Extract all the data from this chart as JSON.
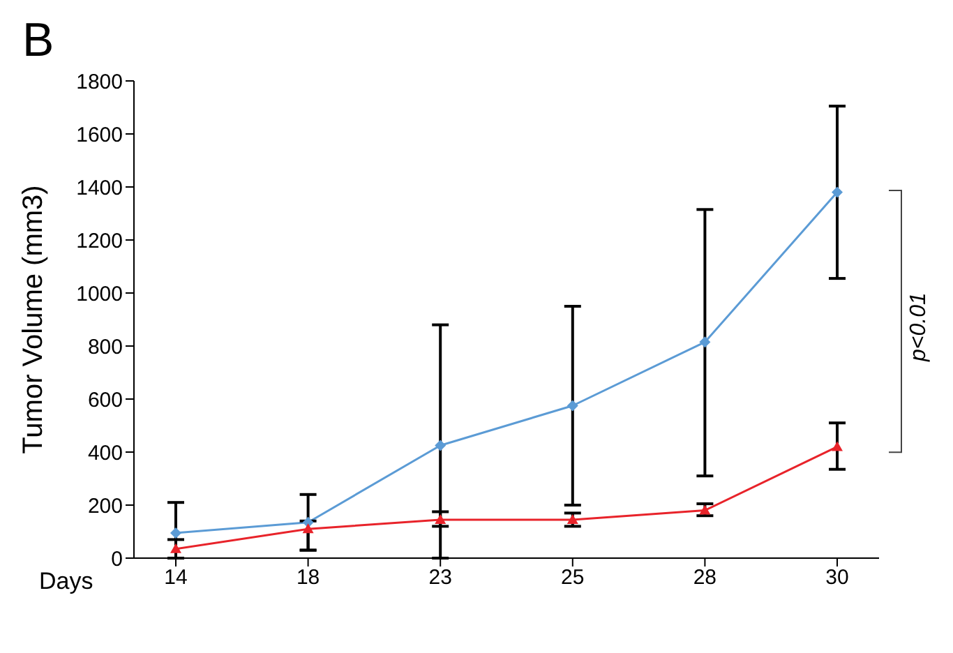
{
  "chart_data": {
    "type": "line",
    "ylabel": "Tumor Volume (mm3)",
    "xlabel": "Days",
    "categories": [
      "14",
      "18",
      "23",
      "25",
      "28",
      "30"
    ],
    "series": [
      {
        "color": "#5b9bd5",
        "marker": "diamond",
        "values": [
          95,
          135,
          425,
          575,
          815,
          1380
        ],
        "errors": [
          [
            0,
            210
          ],
          [
            30,
            240
          ],
          [
            0,
            880
          ],
          [
            200,
            950
          ],
          [
            310,
            1315
          ],
          [
            1055,
            1705
          ]
        ]
      },
      {
        "color": "#e8232a",
        "marker": "triangle",
        "values": [
          35,
          110,
          145,
          145,
          180,
          420
        ],
        "errors": [
          [
            0,
            70
          ],
          [
            30,
            140
          ],
          [
            120,
            175
          ],
          [
            120,
            170
          ],
          [
            160,
            205
          ],
          [
            335,
            510
          ]
        ]
      }
    ],
    "ylim": [
      0,
      1800
    ],
    "yticks": [
      0,
      200,
      400,
      600,
      800,
      1000,
      1200,
      1400,
      1600,
      1800
    ],
    "annotations": [
      "B",
      "p<0.01"
    ]
  }
}
